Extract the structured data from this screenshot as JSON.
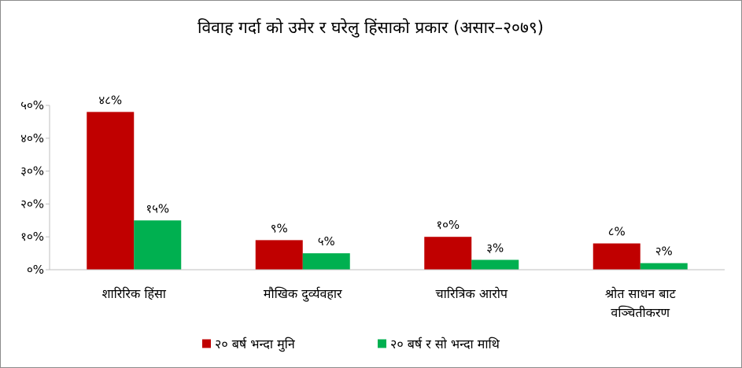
{
  "chart_data": {
    "type": "bar",
    "title": "विवाह गर्दा को उमेर र घरेलु हिंसाको प्रकार (असार–२०७९)",
    "categories": [
      [
        "शारिरिक हिंसा"
      ],
      [
        "मौखिक दुर्व्यवहार"
      ],
      [
        "चारित्रिक आरोप"
      ],
      [
        "श्रोत साधन बाट",
        "वञ्चितीकरण"
      ]
    ],
    "series": [
      {
        "name": "२० बर्ष भन्दा मुनि",
        "color": "#c00000",
        "values": [
          48,
          9,
          10,
          8
        ],
        "labels": [
          "४८%",
          "९%",
          "१०%",
          "८%"
        ]
      },
      {
        "name": "२० बर्ष र सो भन्दा माथि",
        "color": "#00b050",
        "values": [
          15,
          5,
          3,
          2
        ],
        "labels": [
          "१५%",
          "५%",
          "३%",
          "२%"
        ]
      }
    ],
    "y_ticks": [
      {
        "value": 0,
        "label": "०%"
      },
      {
        "value": 10,
        "label": "१०%"
      },
      {
        "value": 20,
        "label": "२०%"
      },
      {
        "value": 30,
        "label": "३०%"
      },
      {
        "value": 40,
        "label": "४०%"
      },
      {
        "value": 50,
        "label": "५०%"
      }
    ],
    "ylim": [
      0,
      50
    ],
    "grid": false,
    "axis_color": "#bfbfbf",
    "legend_position": "bottom"
  }
}
